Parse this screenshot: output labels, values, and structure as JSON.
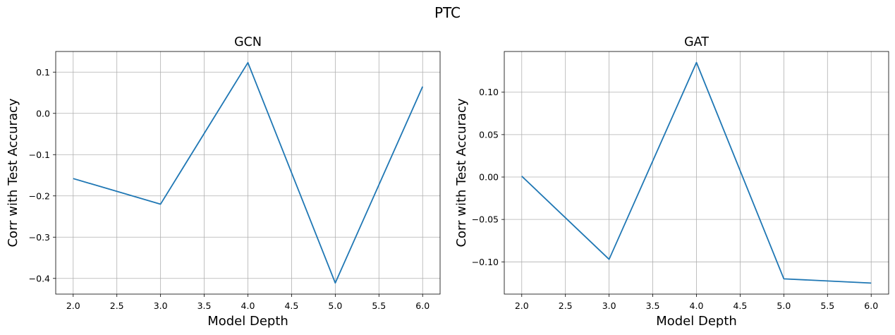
{
  "figure": {
    "suptitle": "PTC"
  },
  "chart_data": [
    {
      "type": "line",
      "title": "GCN",
      "xlabel": "Model Depth",
      "ylabel": "Corr with Test Accuracy",
      "x": [
        2.0,
        3.0,
        4.0,
        5.0,
        6.0
      ],
      "series": [
        {
          "values": [
            -0.158,
            -0.22,
            0.123,
            -0.411,
            0.065
          ],
          "color": "#1f77b4"
        }
      ],
      "xlim": [
        1.8,
        6.2
      ],
      "ylim": [
        -0.438,
        0.15
      ],
      "xticks": [
        2.0,
        2.5,
        3.0,
        3.5,
        4.0,
        4.5,
        5.0,
        5.5,
        6.0
      ],
      "xtick_labels": [
        "2.0",
        "2.5",
        "3.0",
        "3.5",
        "4.0",
        "4.5",
        "5.0",
        "5.5",
        "6.0"
      ],
      "yticks": [
        -0.4,
        -0.3,
        -0.2,
        -0.1,
        0.0,
        0.1
      ],
      "ytick_labels": [
        "−0.4",
        "−0.3",
        "−0.2",
        "−0.1",
        "0.0",
        "0.1"
      ],
      "grid": true
    },
    {
      "type": "line",
      "title": "GAT",
      "xlabel": "Model Depth",
      "ylabel": "Corr with Test Accuracy",
      "x": [
        2.0,
        3.0,
        4.0,
        5.0,
        6.0
      ],
      "series": [
        {
          "values": [
            0.001,
            -0.097,
            0.135,
            -0.12,
            -0.125
          ],
          "color": "#1f77b4"
        }
      ],
      "xlim": [
        1.8,
        6.2
      ],
      "ylim": [
        -0.138,
        0.148
      ],
      "xticks": [
        2.0,
        2.5,
        3.0,
        3.5,
        4.0,
        4.5,
        5.0,
        5.5,
        6.0
      ],
      "xtick_labels": [
        "2.0",
        "2.5",
        "3.0",
        "3.5",
        "4.0",
        "4.5",
        "5.0",
        "5.5",
        "6.0"
      ],
      "yticks": [
        -0.1,
        -0.05,
        0.0,
        0.05,
        0.1
      ],
      "ytick_labels": [
        "−0.10",
        "−0.05",
        "0.00",
        "0.05",
        "0.10"
      ],
      "grid": true
    }
  ]
}
